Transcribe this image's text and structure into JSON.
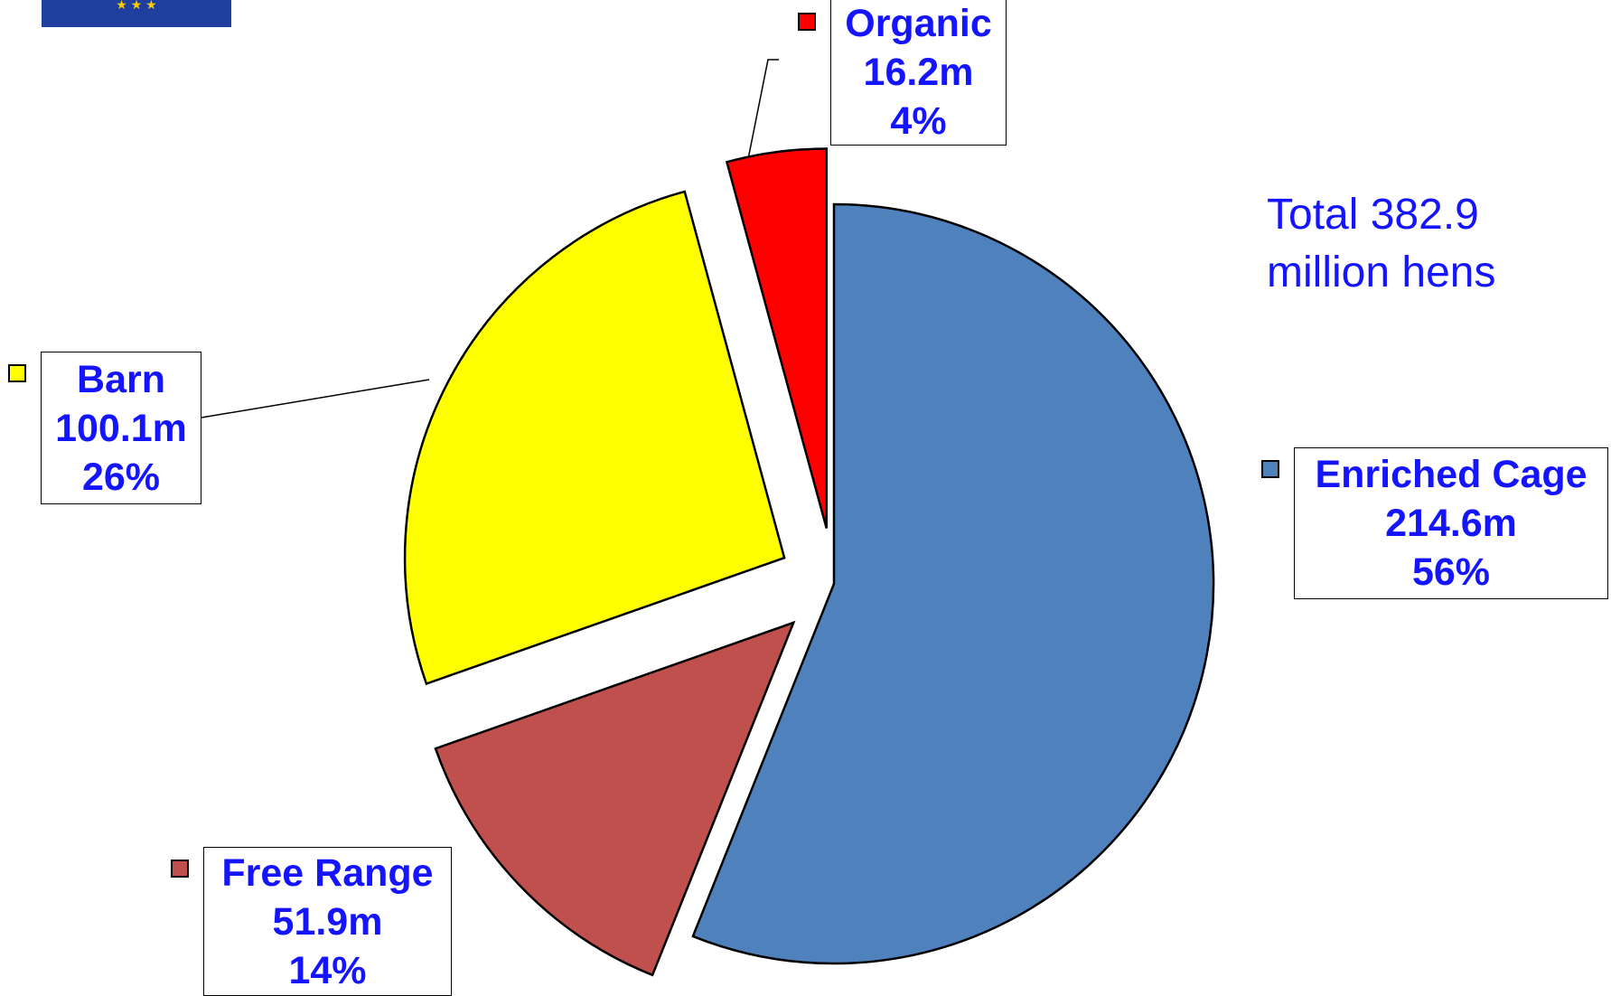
{
  "chart_data": {
    "type": "pie",
    "categories": [
      "Enriched Cage",
      "Free Range",
      "Barn",
      "Organic"
    ],
    "values": [
      214.6,
      51.9,
      100.1,
      16.2
    ],
    "value_labels": [
      "214.6m",
      "51.9m",
      "100.1m",
      "16.2m"
    ],
    "percent_labels": [
      "56%",
      "14%",
      "26%",
      "4%"
    ],
    "colors": [
      "#4f81bd",
      "#c0504d",
      "#ffff00",
      "#ff0000"
    ],
    "annotation": "Total 382.9 million hens"
  }
}
